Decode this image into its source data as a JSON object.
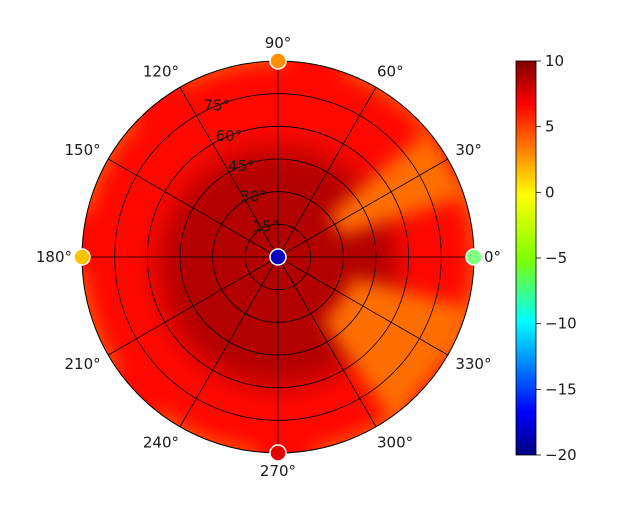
{
  "chart_data": {
    "type": "heatmap",
    "subtype": "polar",
    "title": "",
    "angle_ticks": [
      "0°",
      "30°",
      "60°",
      "90°",
      "120°",
      "150°",
      "180°",
      "210°",
      "240°",
      "270°",
      "300°",
      "330°"
    ],
    "angle_values": [
      0,
      30,
      60,
      90,
      120,
      150,
      180,
      210,
      240,
      270,
      300,
      330
    ],
    "radial_ticks": [
      "15°",
      "30°",
      "45°",
      "60°",
      "75°"
    ],
    "radial_values": [
      15,
      30,
      45,
      60,
      75
    ],
    "radial_range": [
      0,
      90
    ],
    "colorbar": {
      "colormap": "jet",
      "range": [
        -20,
        10
      ],
      "tick_values": [
        10,
        5,
        0,
        -5,
        -10,
        -15,
        -20
      ],
      "tick_labels": [
        "10",
        "5",
        "0",
        "−5",
        "−10",
        "−15",
        "−20"
      ]
    },
    "grid": true,
    "color_regions": [
      {
        "description": "base field",
        "value": 6
      },
      {
        "description": "dark core near center",
        "theta": [
          0,
          360
        ],
        "r": [
          0,
          55
        ],
        "value": 8.5
      },
      {
        "description": "orange wedge",
        "theta": [
          18,
          40
        ],
        "r": [
          30,
          90
        ],
        "value": 3
      },
      {
        "description": "orange lower right",
        "theta": [
          305,
          345
        ],
        "r": [
          35,
          90
        ],
        "value": 3
      }
    ],
    "markers": [
      {
        "theta": 0,
        "r": 0,
        "value": -18
      },
      {
        "theta": 90,
        "r": 90,
        "value": 2
      },
      {
        "theta": 180,
        "r": 90,
        "value": 0.5
      },
      {
        "theta": 270,
        "r": 90,
        "value": 7
      },
      {
        "theta": 0,
        "r": 90,
        "value": -5
      }
    ]
  }
}
